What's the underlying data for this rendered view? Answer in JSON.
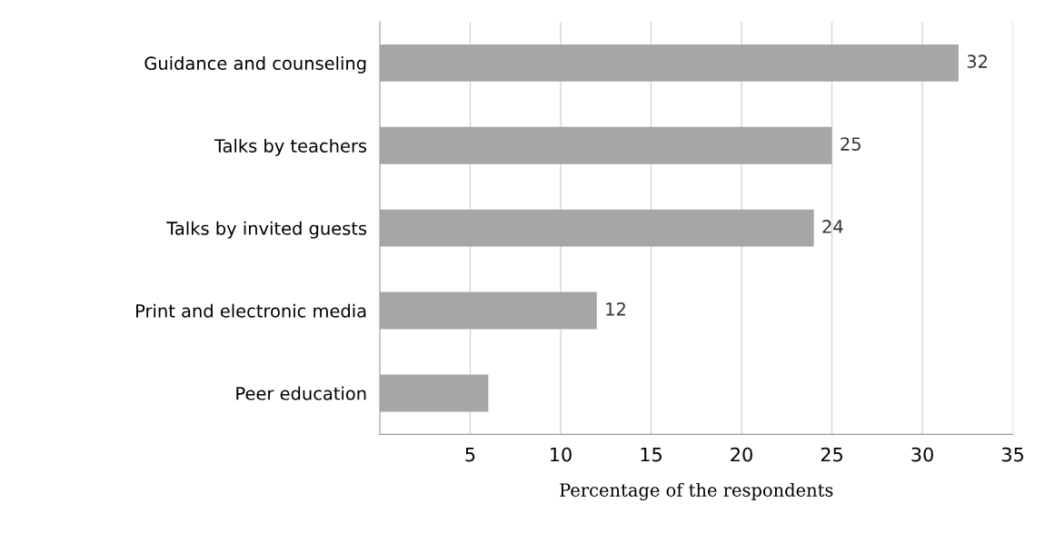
{
  "chart_data": {
    "type": "bar",
    "orientation": "horizontal",
    "xlabel": "Percentage of the respondents",
    "categories": [
      "Guidance and counseling",
      "Talks by teachers",
      "Talks by invited guests",
      "Print and electronic media",
      "Peer education"
    ],
    "values": [
      32,
      25,
      24,
      12,
      6
    ],
    "value_labels": [
      "32",
      "25",
      "24",
      "12",
      null
    ],
    "color": "#a6a6a6",
    "xlim": [
      0,
      35
    ],
    "xticks": [
      5,
      10,
      15,
      20,
      25,
      30,
      35
    ],
    "grid": "x"
  }
}
